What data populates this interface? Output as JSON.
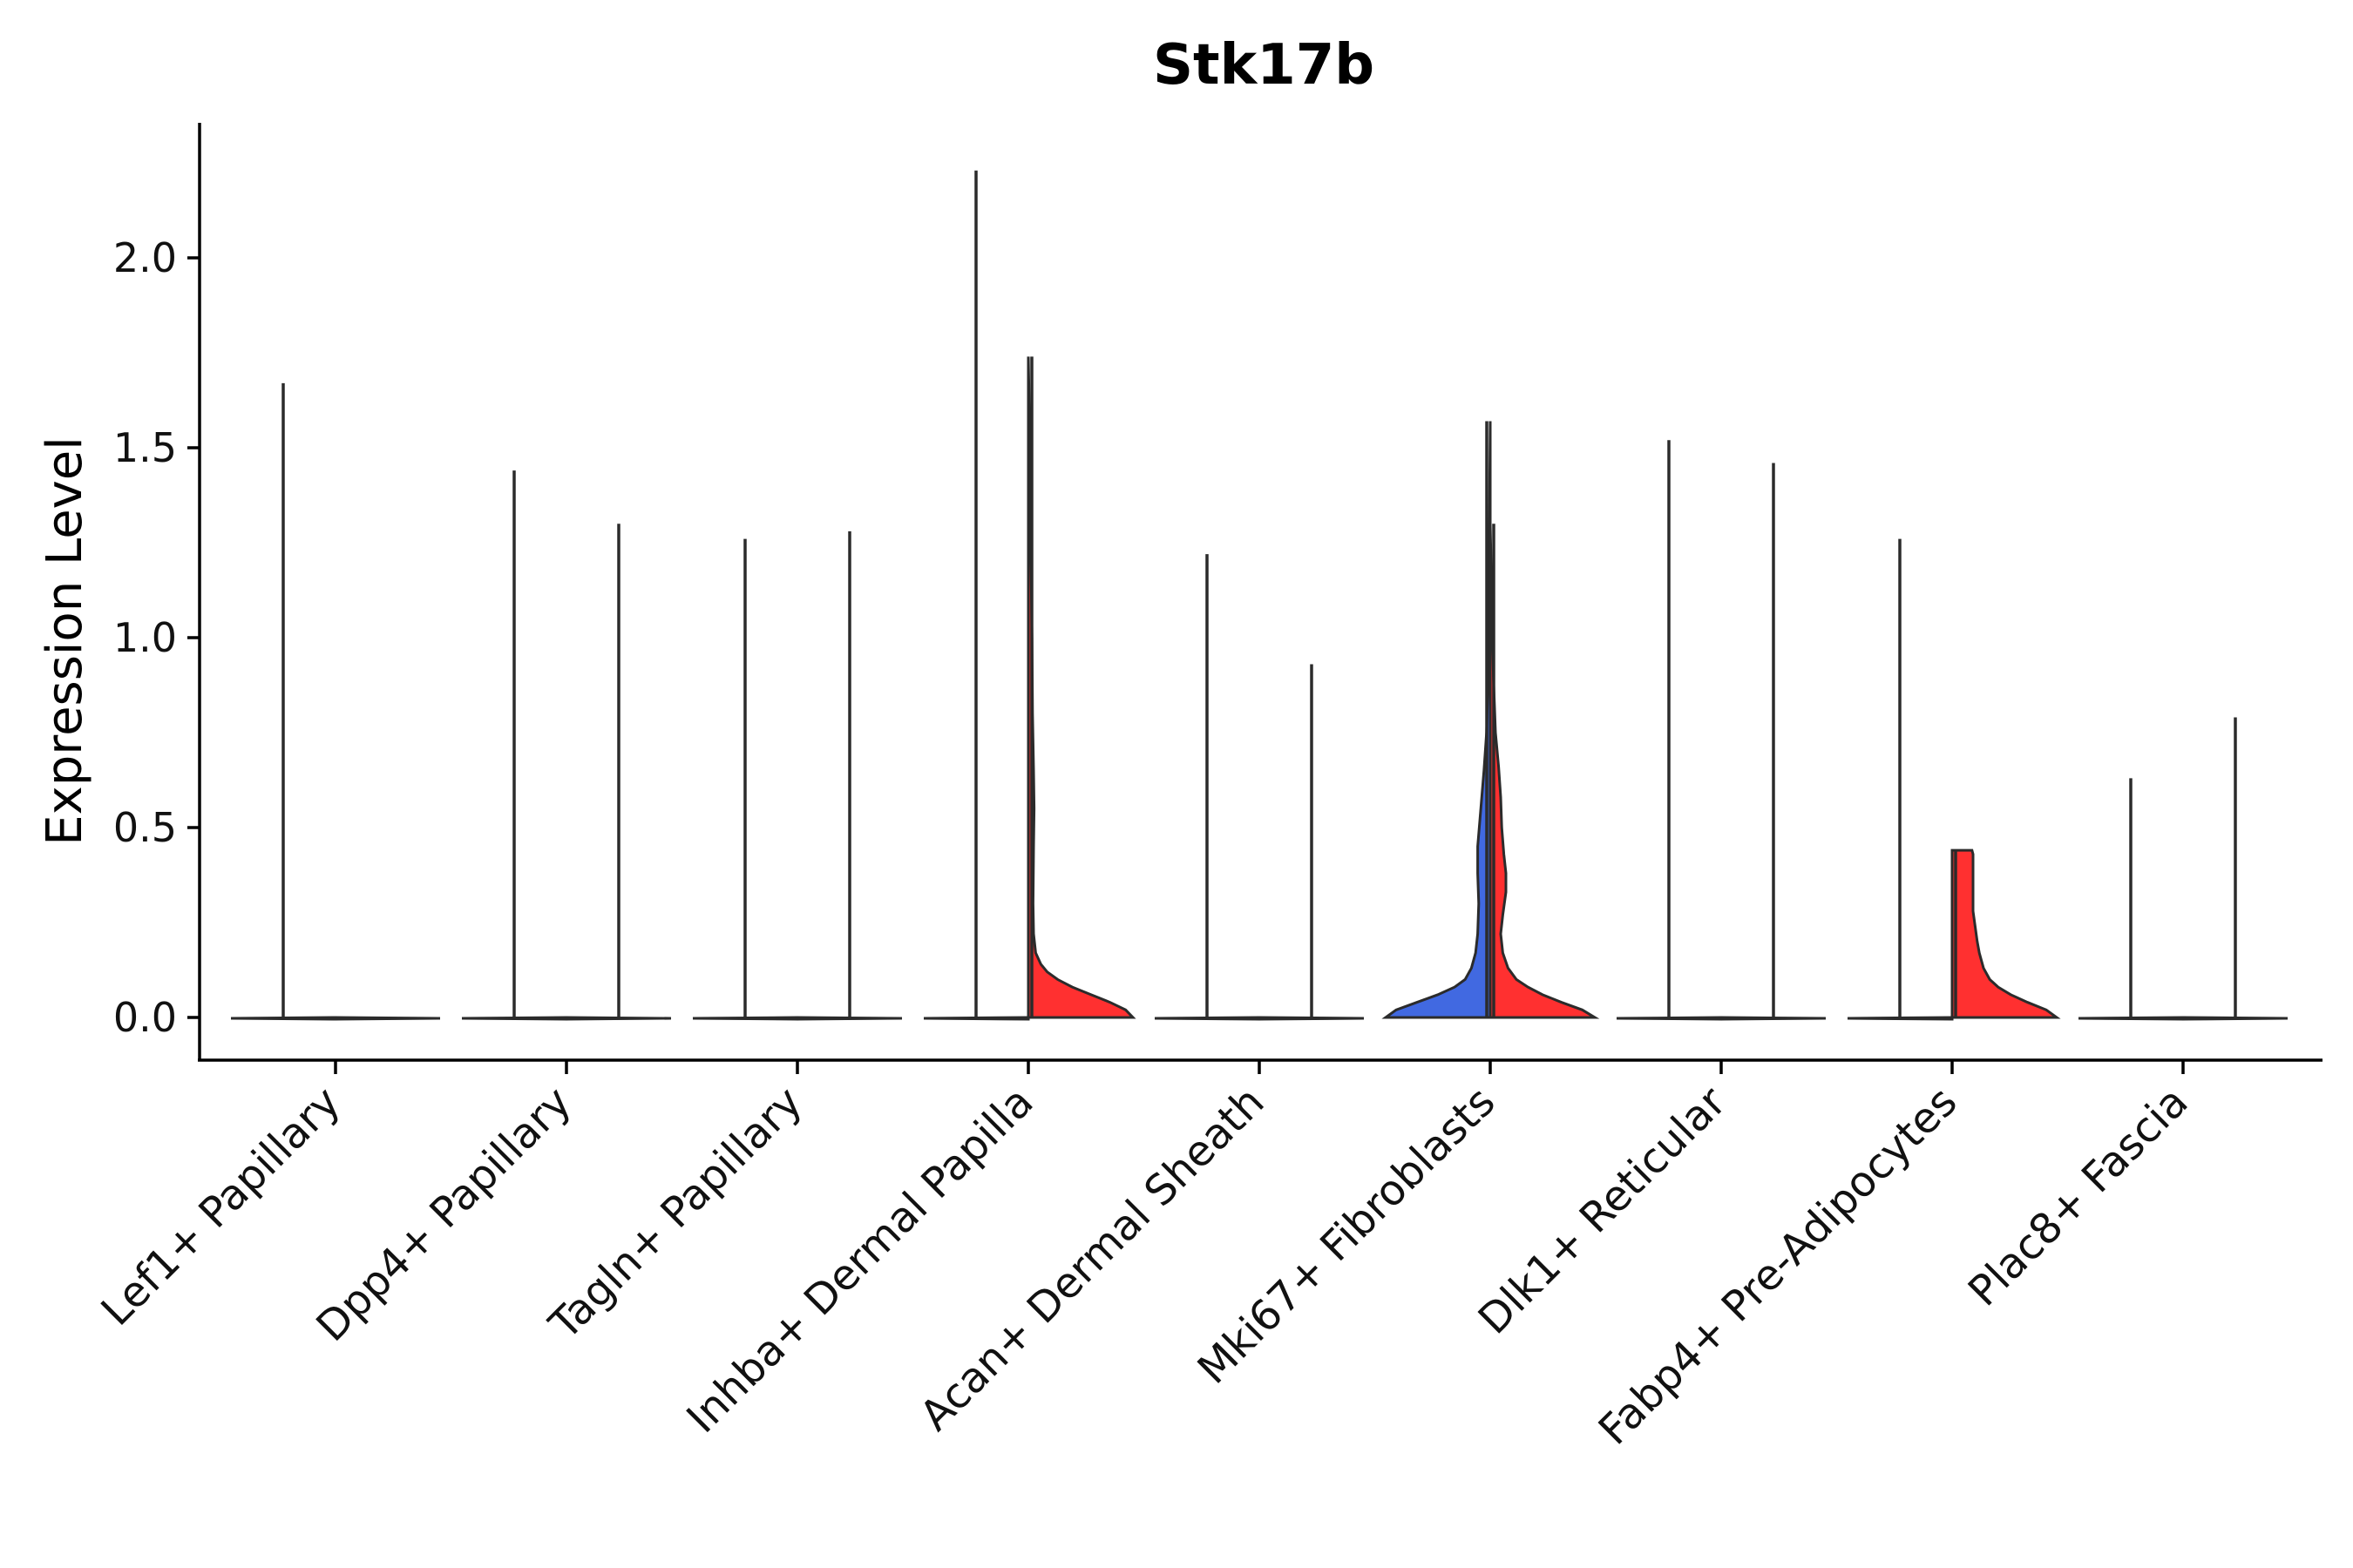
{
  "chart_data": {
    "type": "violin",
    "title": "Stk17b",
    "xlabel": "",
    "ylabel": "Expression Level",
    "ylim": [
      -0.11,
      2.35
    ],
    "yticks": [
      0.0,
      0.5,
      1.0,
      1.5,
      2.0
    ],
    "ytick_labels": [
      "0.0",
      "0.5",
      "1.0",
      "1.5",
      "2.0"
    ],
    "categories": [
      "Lef1+ Papillary",
      "Dpp4+ Papillary",
      "Tagln+ Papillary",
      "Inhba+ Dermal Papilla",
      "Acan+ Dermal Sheath",
      "Mki67+ Fibroblasts",
      "Dlk1+ Reticular",
      "Fabp4+ Pre-Adipocytes",
      "Plac8+ Fascia"
    ],
    "colors": {
      "group_a": "#4169E1",
      "group_b": "#FF3030",
      "flat": "#ffffff"
    },
    "series": [
      {
        "category": "Lef1+ Papillary",
        "side": "left",
        "max": 1.67,
        "color": "flat",
        "profile": [
          [
            0,
            1
          ]
        ]
      },
      {
        "category": "Lef1+ Papillary",
        "side": "right",
        "max": 0.0,
        "color": "flat",
        "profile": [
          [
            0,
            1
          ]
        ]
      },
      {
        "category": "Dpp4+ Papillary",
        "side": "left",
        "max": 1.44,
        "color": "flat",
        "profile": [
          [
            0,
            1
          ]
        ]
      },
      {
        "category": "Dpp4+ Papillary",
        "side": "right",
        "max": 1.3,
        "color": "flat",
        "profile": [
          [
            0,
            1
          ]
        ]
      },
      {
        "category": "Tagln+ Papillary",
        "side": "left",
        "max": 1.26,
        "color": "flat",
        "profile": [
          [
            0,
            1
          ]
        ]
      },
      {
        "category": "Tagln+ Papillary",
        "side": "right",
        "max": 1.28,
        "color": "flat",
        "profile": [
          [
            0,
            1
          ]
        ]
      },
      {
        "category": "Inhba+ Dermal Papilla",
        "side": "left",
        "max": 2.23,
        "color": "flat",
        "profile": [
          [
            0,
            1
          ]
        ]
      },
      {
        "category": "Inhba+ Dermal Papilla",
        "side": "right",
        "max": 1.74,
        "color": "group_b",
        "profile": [
          [
            0,
            1
          ],
          [
            0.02,
            0.93
          ],
          [
            0.04,
            0.78
          ],
          [
            0.06,
            0.6
          ],
          [
            0.08,
            0.42
          ],
          [
            0.1,
            0.28
          ],
          [
            0.12,
            0.18
          ],
          [
            0.14,
            0.12
          ],
          [
            0.17,
            0.07
          ],
          [
            0.22,
            0.05
          ],
          [
            0.3,
            0.045
          ],
          [
            0.45,
            0.05
          ],
          [
            0.55,
            0.055
          ],
          [
            0.65,
            0.05
          ],
          [
            0.8,
            0.04
          ],
          [
            1.0,
            0.035
          ],
          [
            1.2,
            0.025
          ],
          [
            1.5,
            0.015
          ],
          [
            1.74,
            0.0
          ]
        ]
      },
      {
        "category": "Acan+ Dermal Sheath",
        "side": "left",
        "max": 1.22,
        "color": "flat",
        "profile": [
          [
            0,
            1
          ]
        ]
      },
      {
        "category": "Acan+ Dermal Sheath",
        "side": "right",
        "max": 0.93,
        "color": "flat",
        "profile": [
          [
            0,
            1
          ]
        ]
      },
      {
        "category": "Mki67+ Fibroblasts",
        "side": "left",
        "max": 1.57,
        "color": "group_a",
        "profile": [
          [
            0,
            1
          ],
          [
            0.02,
            0.9
          ],
          [
            0.04,
            0.7
          ],
          [
            0.06,
            0.5
          ],
          [
            0.08,
            0.34
          ],
          [
            0.1,
            0.24
          ],
          [
            0.13,
            0.18
          ],
          [
            0.17,
            0.14
          ],
          [
            0.22,
            0.12
          ],
          [
            0.3,
            0.11
          ],
          [
            0.38,
            0.12
          ],
          [
            0.45,
            0.12
          ],
          [
            0.55,
            0.09
          ],
          [
            0.65,
            0.06
          ],
          [
            0.75,
            0.035
          ],
          [
            0.9,
            0.02
          ],
          [
            1.1,
            0.012
          ],
          [
            1.3,
            0.008
          ],
          [
            1.57,
            0.0
          ]
        ]
      },
      {
        "category": "Mki67+ Fibroblasts",
        "side": "right",
        "max": 1.3,
        "color": "group_b",
        "profile": [
          [
            0,
            1
          ],
          [
            0.02,
            0.88
          ],
          [
            0.04,
            0.68
          ],
          [
            0.06,
            0.5
          ],
          [
            0.08,
            0.36
          ],
          [
            0.1,
            0.25
          ],
          [
            0.13,
            0.17
          ],
          [
            0.17,
            0.12
          ],
          [
            0.22,
            0.1
          ],
          [
            0.27,
            0.12
          ],
          [
            0.33,
            0.15
          ],
          [
            0.38,
            0.15
          ],
          [
            0.43,
            0.13
          ],
          [
            0.5,
            0.11
          ],
          [
            0.58,
            0.1
          ],
          [
            0.66,
            0.08
          ],
          [
            0.75,
            0.05
          ],
          [
            0.9,
            0.03
          ],
          [
            1.1,
            0.015
          ],
          [
            1.3,
            0.0
          ]
        ]
      },
      {
        "category": "Dlk1+ Reticular",
        "side": "left",
        "max": 1.52,
        "color": "flat",
        "profile": [
          [
            0,
            1
          ]
        ]
      },
      {
        "category": "Dlk1+ Reticular",
        "side": "right",
        "max": 1.46,
        "color": "flat",
        "profile": [
          [
            0,
            1
          ]
        ]
      },
      {
        "category": "Fabp4+ Pre-Adipocytes",
        "side": "left",
        "max": 1.26,
        "color": "flat",
        "profile": [
          [
            0,
            1
          ]
        ]
      },
      {
        "category": "Fabp4+ Pre-Adipocytes",
        "side": "right",
        "max": 0.44,
        "color": "group_b",
        "profile": [
          [
            0,
            1
          ],
          [
            0.02,
            0.9
          ],
          [
            0.04,
            0.72
          ],
          [
            0.06,
            0.56
          ],
          [
            0.08,
            0.44
          ],
          [
            0.1,
            0.36
          ],
          [
            0.13,
            0.3
          ],
          [
            0.17,
            0.26
          ],
          [
            0.2,
            0.24
          ],
          [
            0.24,
            0.22
          ],
          [
            0.28,
            0.2
          ],
          [
            0.32,
            0.2
          ],
          [
            0.36,
            0.2
          ],
          [
            0.4,
            0.2
          ],
          [
            0.43,
            0.2
          ],
          [
            0.44,
            0.19
          ]
        ]
      },
      {
        "category": "Plac8+ Fascia",
        "side": "left",
        "max": 0.63,
        "color": "flat",
        "profile": [
          [
            0,
            1
          ]
        ]
      },
      {
        "category": "Plac8+ Fascia",
        "side": "right",
        "max": 0.79,
        "color": "flat",
        "profile": [
          [
            0,
            1
          ]
        ]
      }
    ]
  }
}
